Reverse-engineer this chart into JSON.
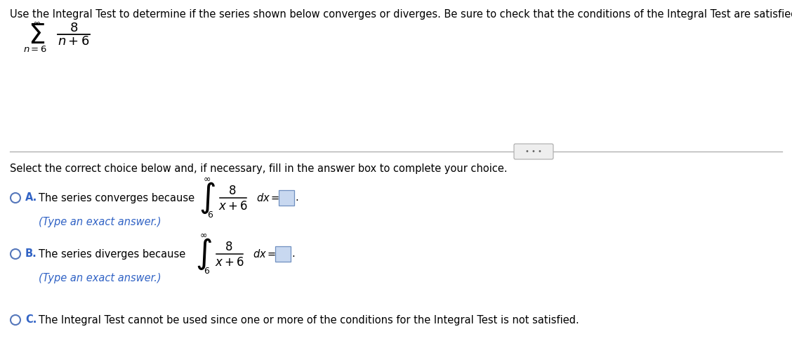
{
  "title_text": "Use the Integral Test to determine if the series shown below converges or diverges. Be sure to check that the conditions of the Integral Test are satisfied.",
  "black": "#000000",
  "blue": "#3163C5",
  "box_face": "#C8D8F0",
  "box_edge": "#7090C0",
  "bg": "#FFFFFF",
  "gray_line": "#AAAAAA",
  "circle_edge": "#5577BB",
  "select_text": "Select the correct choice below and, if necessary, fill in the answer box to complete your choice.",
  "choice_A_text": "The series converges because",
  "choice_B_text": "The series diverges because",
  "choice_C_text": "The Integral Test cannot be used since one or more of the conditions for the Integral Test is not satisfied.",
  "type_exact": "(Type an exact answer.)",
  "fs_title": 10.5,
  "fs_body": 10.5,
  "fs_math": 12,
  "fs_sigma": 28,
  "fs_integral": 24,
  "fs_small": 9
}
